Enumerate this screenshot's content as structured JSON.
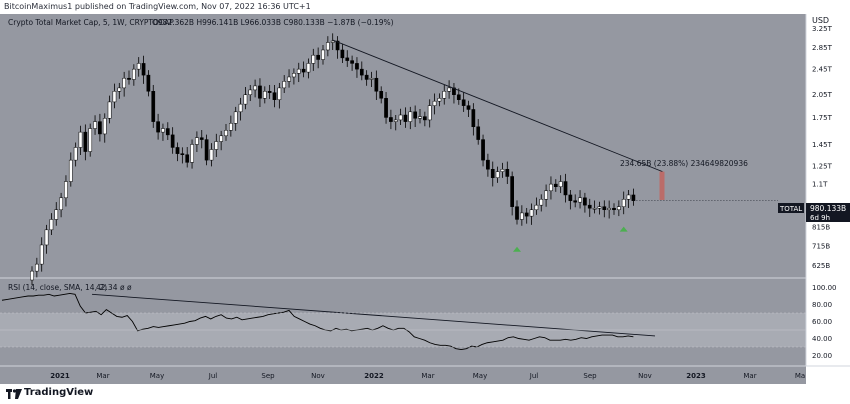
{
  "publish_line": "BitcoinMaximus1 published on TradingView.com, Nov 07, 2022 16:36 UTC+1",
  "legend": {
    "symbol": "Crypto Total Market Cap, 5, 1W, CRYPTOCAP",
    "ohlc": "O982.362B H996.141B L966.033B C980.133B −1.87B (−0.19%)"
  },
  "rsi_legend": {
    "label": "RSI (14, close, SMA, 14, 2)",
    "value": "42.34",
    "extra": "ø ø"
  },
  "price_label": {
    "tag": "TOTAL",
    "value": "980.133B",
    "countdown": "6d 9h"
  },
  "measure_label": "234.65B (23.88%) 234649820936",
  "brand": "TradingView",
  "colors": {
    "bg": "#9598a1",
    "up": "#ffffff",
    "down": "#000000",
    "accent_green": "#4caf50",
    "measure_red": "#c2645f",
    "rsi_band": "#a8abb3"
  },
  "chart_data": [
    {
      "type": "candlestick",
      "title": "Crypto Total Market Cap, 5, 1W, CRYPTOCAP",
      "y_unit": "USD",
      "y_scale": "log",
      "y_ticks": [
        "3.25T",
        "2.85T",
        "2.45T",
        "2.05T",
        "1.75T",
        "1.45T",
        "1.25T",
        "1.1T",
        "815B",
        "715B",
        "625B"
      ],
      "x_ticks": [
        "2021",
        "Mar",
        "May",
        "Jul",
        "Sep",
        "Nov",
        "2022",
        "Mar",
        "May",
        "Jul",
        "Sep",
        "Nov",
        "2023",
        "Mar",
        "Ma"
      ],
      "last_close": "980.133B",
      "resistance_line": {
        "from": [
          "2021-11-08",
          3.0
        ],
        "to": [
          "2022-11-14",
          1.2
        ]
      },
      "green_arrows": [
        "2022-06-13",
        "2022-10-10"
      ],
      "weekly_close_T": [
        0.6,
        0.63,
        0.72,
        0.8,
        0.86,
        0.92,
        1.0,
        1.12,
        1.3,
        1.42,
        1.58,
        1.38,
        1.62,
        1.7,
        1.56,
        1.74,
        1.95,
        2.1,
        2.15,
        2.3,
        2.28,
        2.45,
        2.55,
        2.35,
        2.1,
        1.7,
        1.58,
        1.62,
        1.55,
        1.42,
        1.36,
        1.35,
        1.28,
        1.45,
        1.52,
        1.5,
        1.3,
        1.4,
        1.48,
        1.54,
        1.6,
        1.68,
        1.82,
        1.92,
        2.05,
        2.12,
        2.18,
        2.0,
        2.1,
        2.08,
        1.98,
        2.15,
        2.25,
        2.32,
        2.38,
        2.45,
        2.4,
        2.55,
        2.7,
        2.62,
        2.8,
        2.95,
        2.98,
        2.8,
        2.65,
        2.6,
        2.55,
        2.45,
        2.35,
        2.28,
        2.3,
        2.1,
        2.0,
        1.75,
        1.7,
        1.72,
        1.78,
        1.7,
        1.82,
        1.74,
        1.76,
        1.72,
        1.9,
        1.96,
        2.0,
        2.1,
        2.15,
        2.05,
        1.98,
        1.9,
        1.85,
        1.64,
        1.5,
        1.3,
        1.22,
        1.15,
        1.2,
        1.22,
        1.16,
        0.94,
        0.86,
        0.9,
        0.88,
        0.92,
        0.95,
        0.99,
        1.05,
        1.1,
        1.08,
        1.12,
        1.02,
        0.98,
        0.97,
        1.0,
        0.95,
        0.93,
        0.93,
        0.94,
        0.92,
        0.93,
        0.92,
        0.94,
        0.99,
        1.02,
        0.98
      ]
    },
    {
      "type": "line",
      "title": "RSI (14, close, SMA, 14, 2)",
      "y_ticks": [
        "100.00",
        "80.00",
        "60.00",
        "40.00",
        "20.00"
      ],
      "ylim": [
        10,
        110
      ],
      "last_value": 42.34,
      "band": [
        30,
        70
      ],
      "values": [
        85,
        86,
        87,
        88,
        89,
        90,
        90,
        91,
        91,
        92,
        90,
        91,
        92,
        93,
        92,
        78,
        70,
        71,
        72,
        68,
        74,
        70,
        66,
        65,
        67,
        60,
        49,
        51,
        52,
        54,
        53,
        54,
        55,
        56,
        57,
        58,
        60,
        61,
        64,
        66,
        63,
        66,
        68,
        64,
        63,
        65,
        62,
        63,
        64,
        65,
        66,
        68,
        69,
        70,
        71,
        73,
        66,
        63,
        60,
        57,
        55,
        52,
        50,
        49,
        52,
        50,
        51,
        49,
        50,
        51,
        52,
        50,
        52,
        55,
        52,
        50,
        52,
        52,
        48,
        42,
        40,
        38,
        35,
        33,
        32,
        32,
        31,
        28,
        27,
        28,
        31,
        30,
        33,
        35,
        36,
        37,
        38,
        41,
        42,
        40,
        39,
        38,
        40,
        42,
        41,
        38,
        38,
        38,
        39,
        38,
        39,
        41,
        40,
        42,
        43,
        44,
        44,
        44,
        42,
        42,
        43,
        42
      ],
      "trend_line": {
        "from_value": 92,
        "to_value": 43
      }
    }
  ]
}
